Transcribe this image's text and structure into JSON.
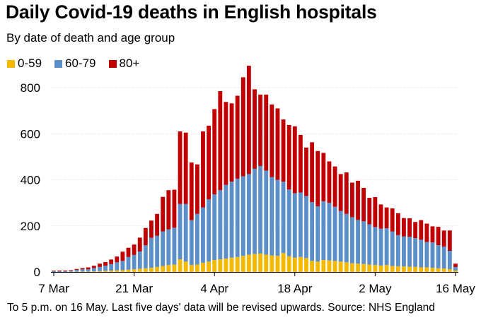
{
  "title": "Daily Covid-19 deaths in English hospitals",
  "subtitle": "By date of death and age group",
  "footnote": "To 5 p.m. on 16 May. Last five days' data will be revised upwards. Source: NHS England",
  "colors": {
    "band_0_59": "#f5b800",
    "band_60_79": "#5b8fc9",
    "band_80_plus": "#c00000",
    "grid": "#d9d9d9",
    "axis": "#000000"
  },
  "legend": [
    {
      "label": "0-59",
      "color": "#f5b800"
    },
    {
      "label": "60-79",
      "color": "#5b8fc9"
    },
    {
      "label": "80+",
      "color": "#c00000"
    }
  ],
  "chart_data": {
    "type": "bar",
    "stacked": true,
    "title": "Daily Covid-19 deaths in English hospitals",
    "subtitle": "By date of death and age group",
    "xlabel": "",
    "ylabel": "",
    "ylim": [
      0,
      880
    ],
    "yticks": [
      0,
      200,
      400,
      600,
      800
    ],
    "xticks": [
      "7 Mar",
      "21 Mar",
      "4 Apr",
      "18 Apr",
      "2 May",
      "16 May"
    ],
    "grid": true,
    "legend_position": "top-left",
    "categories": [
      "7 Mar",
      "8 Mar",
      "9 Mar",
      "10 Mar",
      "11 Mar",
      "12 Mar",
      "13 Mar",
      "14 Mar",
      "15 Mar",
      "16 Mar",
      "17 Mar",
      "18 Mar",
      "19 Mar",
      "20 Mar",
      "21 Mar",
      "22 Mar",
      "23 Mar",
      "24 Mar",
      "25 Mar",
      "26 Mar",
      "27 Mar",
      "28 Mar",
      "29 Mar",
      "30 Mar",
      "31 Mar",
      "1 Apr",
      "2 Apr",
      "3 Apr",
      "4 Apr",
      "5 Apr",
      "6 Apr",
      "7 Apr",
      "8 Apr",
      "9 Apr",
      "10 Apr",
      "11 Apr",
      "12 Apr",
      "13 Apr",
      "14 Apr",
      "15 Apr",
      "16 Apr",
      "17 Apr",
      "18 Apr",
      "19 Apr",
      "20 Apr",
      "21 Apr",
      "22 Apr",
      "23 Apr",
      "24 Apr",
      "25 Apr",
      "26 Apr",
      "27 Apr",
      "28 Apr",
      "29 Apr",
      "30 Apr",
      "1 May",
      "2 May",
      "3 May",
      "4 May",
      "5 May",
      "6 May",
      "7 May",
      "8 May",
      "9 May",
      "10 May",
      "11 May",
      "12 May",
      "13 May",
      "14 May",
      "15 May",
      "16 May"
    ],
    "series": [
      {
        "name": "0-59",
        "values": [
          0,
          0,
          0,
          1,
          1,
          2,
          2,
          3,
          4,
          5,
          6,
          7,
          8,
          10,
          12,
          14,
          16,
          18,
          22,
          26,
          30,
          32,
          55,
          45,
          30,
          32,
          40,
          45,
          52,
          55,
          58,
          62,
          65,
          70,
          75,
          78,
          80,
          75,
          72,
          70,
          82,
          68,
          62,
          65,
          60,
          48,
          45,
          52,
          50,
          48,
          45,
          42,
          38,
          36,
          35,
          32,
          30,
          28,
          30,
          26,
          25,
          24,
          23,
          22,
          20,
          20,
          18,
          16,
          15,
          12,
          6
        ]
      },
      {
        "name": "60-79",
        "values": [
          4,
          3,
          3,
          4,
          8,
          10,
          10,
          14,
          18,
          22,
          28,
          35,
          40,
          55,
          62,
          75,
          100,
          130,
          135,
          150,
          155,
          160,
          240,
          250,
          195,
          220,
          240,
          270,
          285,
          300,
          320,
          330,
          340,
          345,
          350,
          370,
          380,
          365,
          340,
          330,
          310,
          290,
          280,
          280,
          270,
          255,
          240,
          255,
          250,
          235,
          220,
          210,
          200,
          190,
          185,
          175,
          165,
          160,
          160,
          150,
          135,
          130,
          130,
          125,
          120,
          110,
          110,
          100,
          95,
          80,
          15
        ]
      },
      {
        "name": "80+",
        "values": [
          2,
          3,
          3,
          3,
          4,
          5,
          8,
          10,
          14,
          16,
          20,
          25,
          40,
          40,
          45,
          60,
          75,
          75,
          95,
          150,
          170,
          165,
          315,
          310,
          250,
          215,
          330,
          320,
          370,
          430,
          360,
          340,
          360,
          430,
          470,
          345,
          310,
          330,
          315,
          310,
          270,
          280,
          290,
          250,
          210,
          260,
          240,
          210,
          180,
          175,
          160,
          180,
          150,
          170,
          145,
          115,
          130,
          105,
          90,
          100,
          95,
          80,
          80,
          70,
          85,
          80,
          70,
          80,
          70,
          88,
          15
        ]
      }
    ]
  }
}
